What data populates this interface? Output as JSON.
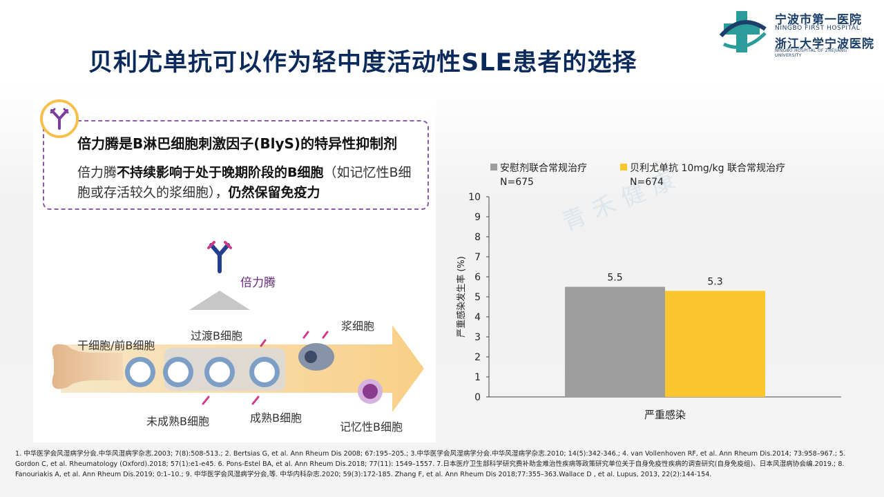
{
  "title": "贝利尤单抗可以作为轻中度活动性SLE患者的选择",
  "logo": {
    "cn1": "宁波市第一医院",
    "en1": "NINGBO FIRST HOSPITAL",
    "cn2": "浙江大学宁波医院",
    "en2": "NINGBO HOSPITAL OF ZHEJIANG UNIVERSITY"
  },
  "left": {
    "drug_desc": "倍力腾是B淋巴细胞刺激因子(BlyS)的特异性抑制剂",
    "note_prefix": "倍力腾",
    "note_bold1": "不持续影响于处于晚期阶段的B细胞",
    "note_mid": "（如记忆性B细胞或存活较久的浆细胞），",
    "note_bold2": "仍然保留免疫力",
    "diagram": {
      "drug_label": "倍力腾",
      "stem": "干细胞/前B细胞",
      "transitional": "过渡B细胞",
      "plasma": "浆细胞",
      "immature": "未成熟B细胞",
      "mature": "成熟B细胞",
      "memory": "记忆性B细胞"
    }
  },
  "watermark": "青禾健康",
  "chart_data": {
    "type": "bar",
    "categories": [
      "严重感染"
    ],
    "series": [
      {
        "name": "安慰剂联合常规治疗",
        "n_label": "N=675",
        "values": [
          5.5
        ],
        "color": "#9e9e9e"
      },
      {
        "name": "贝利尤单抗 10mg/kg 联合常规治疗",
        "n_label": "N=674",
        "values": [
          5.3
        ],
        "color": "#fdc62f"
      }
    ],
    "ylabel": "严重感染发生率 (%)",
    "xlabel": "",
    "ylim": [
      0,
      10
    ],
    "yticks": [
      "0",
      "1",
      "2",
      "3",
      "4",
      "5",
      "6",
      "7",
      "8",
      "9",
      "10"
    ],
    "data_labels": [
      "5.5",
      "5.3"
    ],
    "grid": false,
    "legend_position": "top"
  },
  "references": "1. 中华医学会风湿病学分会.中华风湿病学杂志.2003; 7(8):508-513.; 2. Bertsias G, et al. Ann Rheum Dis 2008; 67:195–205.; 3.中华医学会风湿病学分会.中华风湿病学杂志.2010; 14(5):342-346.; 4. van Vollenhoven RF, et al. Ann Rheum Dis.2014; 73:958–967.; 5. Gordon C, et al. Rheumatology (Oxford).2018; 57(1):e1-e45. 6. Pons-Estel BA, et al. Ann Rheum Dis.2018; 77(11): 1549–1557. 7.日本医疗卫生部科学研究费补助金难治性疾病等政策研究单位关于自身免疫性疾病的调查研究(自身免疫组)、日本风湿病协会编.2019.; 8. Fanouriakis A, et al. Ann Rheum Dis.2019; 0:1–10.; 9. 中华医学会风湿病学分会,等. 中华内科杂志.2020; 59(3):172-185. Zhang F, et al. Ann Rheum Dis 2018;77:355–363.Wallace D , et al. Lupus, 2013, 22(2):144-154."
}
